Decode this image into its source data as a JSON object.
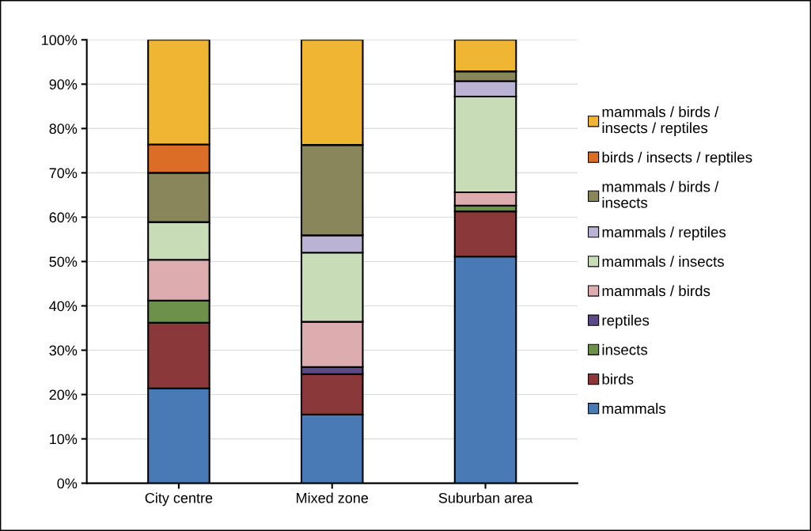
{
  "chart_data": {
    "type": "bar",
    "stacked": true,
    "categories": [
      "City centre",
      "Mixed zone",
      "Suburban area"
    ],
    "series": [
      {
        "name": "mammals",
        "color": "#4a7ab5",
        "values": [
          21.4,
          15.5,
          51.1
        ]
      },
      {
        "name": "birds",
        "color": "#8b383a",
        "values": [
          14.8,
          9.1,
          10.2
        ]
      },
      {
        "name": "insects",
        "color": "#6d914a",
        "values": [
          5.0,
          0,
          1.3
        ]
      },
      {
        "name": "reptiles",
        "color": "#5b4a85",
        "values": [
          0,
          1.6,
          0
        ]
      },
      {
        "name": "mammals / birds",
        "color": "#ddacae",
        "values": [
          9.2,
          10.2,
          3.0
        ]
      },
      {
        "name": "mammals / insects",
        "color": "#c9dcb8",
        "values": [
          8.5,
          15.6,
          21.6
        ]
      },
      {
        "name": "mammals / reptiles",
        "color": "#bab3d3",
        "values": [
          0,
          3.9,
          3.5
        ]
      },
      {
        "name": "mammals / birds /\ninsects",
        "color": "#89865c",
        "values": [
          11.1,
          20.4,
          2.2
        ]
      },
      {
        "name": "birds / insects / reptiles",
        "color": "#dc6d27",
        "values": [
          6.4,
          0,
          0
        ]
      },
      {
        "name": "mammals / birds /\ninsects / reptiles",
        "color": "#f0b533",
        "values": [
          23.6,
          23.7,
          7.1
        ]
      }
    ],
    "ylim": [
      0,
      100
    ],
    "yticks": [
      {
        "value": 0,
        "label": "0%"
      },
      {
        "value": 10,
        "label": "10%"
      },
      {
        "value": 20,
        "label": "20%"
      },
      {
        "value": 30,
        "label": "30%"
      },
      {
        "value": 40,
        "label": "40%"
      },
      {
        "value": 50,
        "label": "50%"
      },
      {
        "value": 60,
        "label": "60%"
      },
      {
        "value": 70,
        "label": "70%"
      },
      {
        "value": 80,
        "label": "80%"
      },
      {
        "value": 90,
        "label": "90%"
      },
      {
        "value": 100,
        "label": "100%"
      }
    ],
    "grid": "y",
    "legend": "right"
  }
}
